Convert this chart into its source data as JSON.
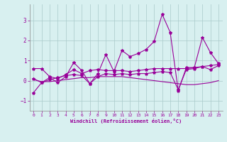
{
  "xlabel": "Windchill (Refroidissement éolien,°C)",
  "x_values": [
    0,
    1,
    2,
    3,
    4,
    5,
    6,
    7,
    8,
    9,
    10,
    11,
    12,
    13,
    14,
    15,
    16,
    17,
    18,
    19,
    20,
    21,
    22,
    23
  ],
  "line1_y": [
    -0.6,
    -0.1,
    0.15,
    -0.1,
    0.2,
    0.9,
    0.5,
    -0.15,
    0.35,
    1.3,
    0.45,
    1.5,
    1.2,
    1.35,
    1.55,
    1.95,
    3.3,
    2.4,
    -0.5,
    0.65,
    0.65,
    2.15,
    1.4,
    0.85
  ],
  "line2_y": [
    0.6,
    0.6,
    0.2,
    0.1,
    0.3,
    0.55,
    0.35,
    0.5,
    0.55,
    0.5,
    0.5,
    0.5,
    0.45,
    0.5,
    0.55,
    0.6,
    0.6,
    0.6,
    0.6,
    0.6,
    0.65,
    0.7,
    0.75,
    0.8
  ],
  "line3_y": [
    0.1,
    -0.1,
    0.05,
    0.15,
    0.25,
    0.3,
    0.25,
    -0.15,
    0.2,
    0.35,
    0.3,
    0.35,
    0.3,
    0.35,
    0.35,
    0.4,
    0.45,
    0.4,
    -0.45,
    0.55,
    0.6,
    0.7,
    0.55,
    0.75
  ],
  "line4_y": [
    0.05,
    -0.05,
    -0.05,
    0.0,
    0.05,
    0.1,
    0.15,
    0.15,
    0.2,
    0.2,
    0.2,
    0.2,
    0.15,
    0.1,
    0.05,
    0.0,
    -0.05,
    -0.1,
    -0.15,
    -0.2,
    -0.2,
    -0.15,
    -0.1,
    0.0
  ],
  "ylim": [
    -1.5,
    3.8
  ],
  "yticks": [
    -1,
    0,
    1,
    2,
    3
  ],
  "xticks": [
    0,
    1,
    2,
    3,
    4,
    5,
    6,
    7,
    8,
    9,
    10,
    11,
    12,
    13,
    14,
    15,
    16,
    17,
    18,
    19,
    20,
    21,
    22,
    23
  ],
  "line_color": "#990099",
  "bg_color": "#d8f0f0",
  "grid_color": "#aacaca",
  "marker": "*",
  "linewidth": 0.8,
  "markersize": 3
}
